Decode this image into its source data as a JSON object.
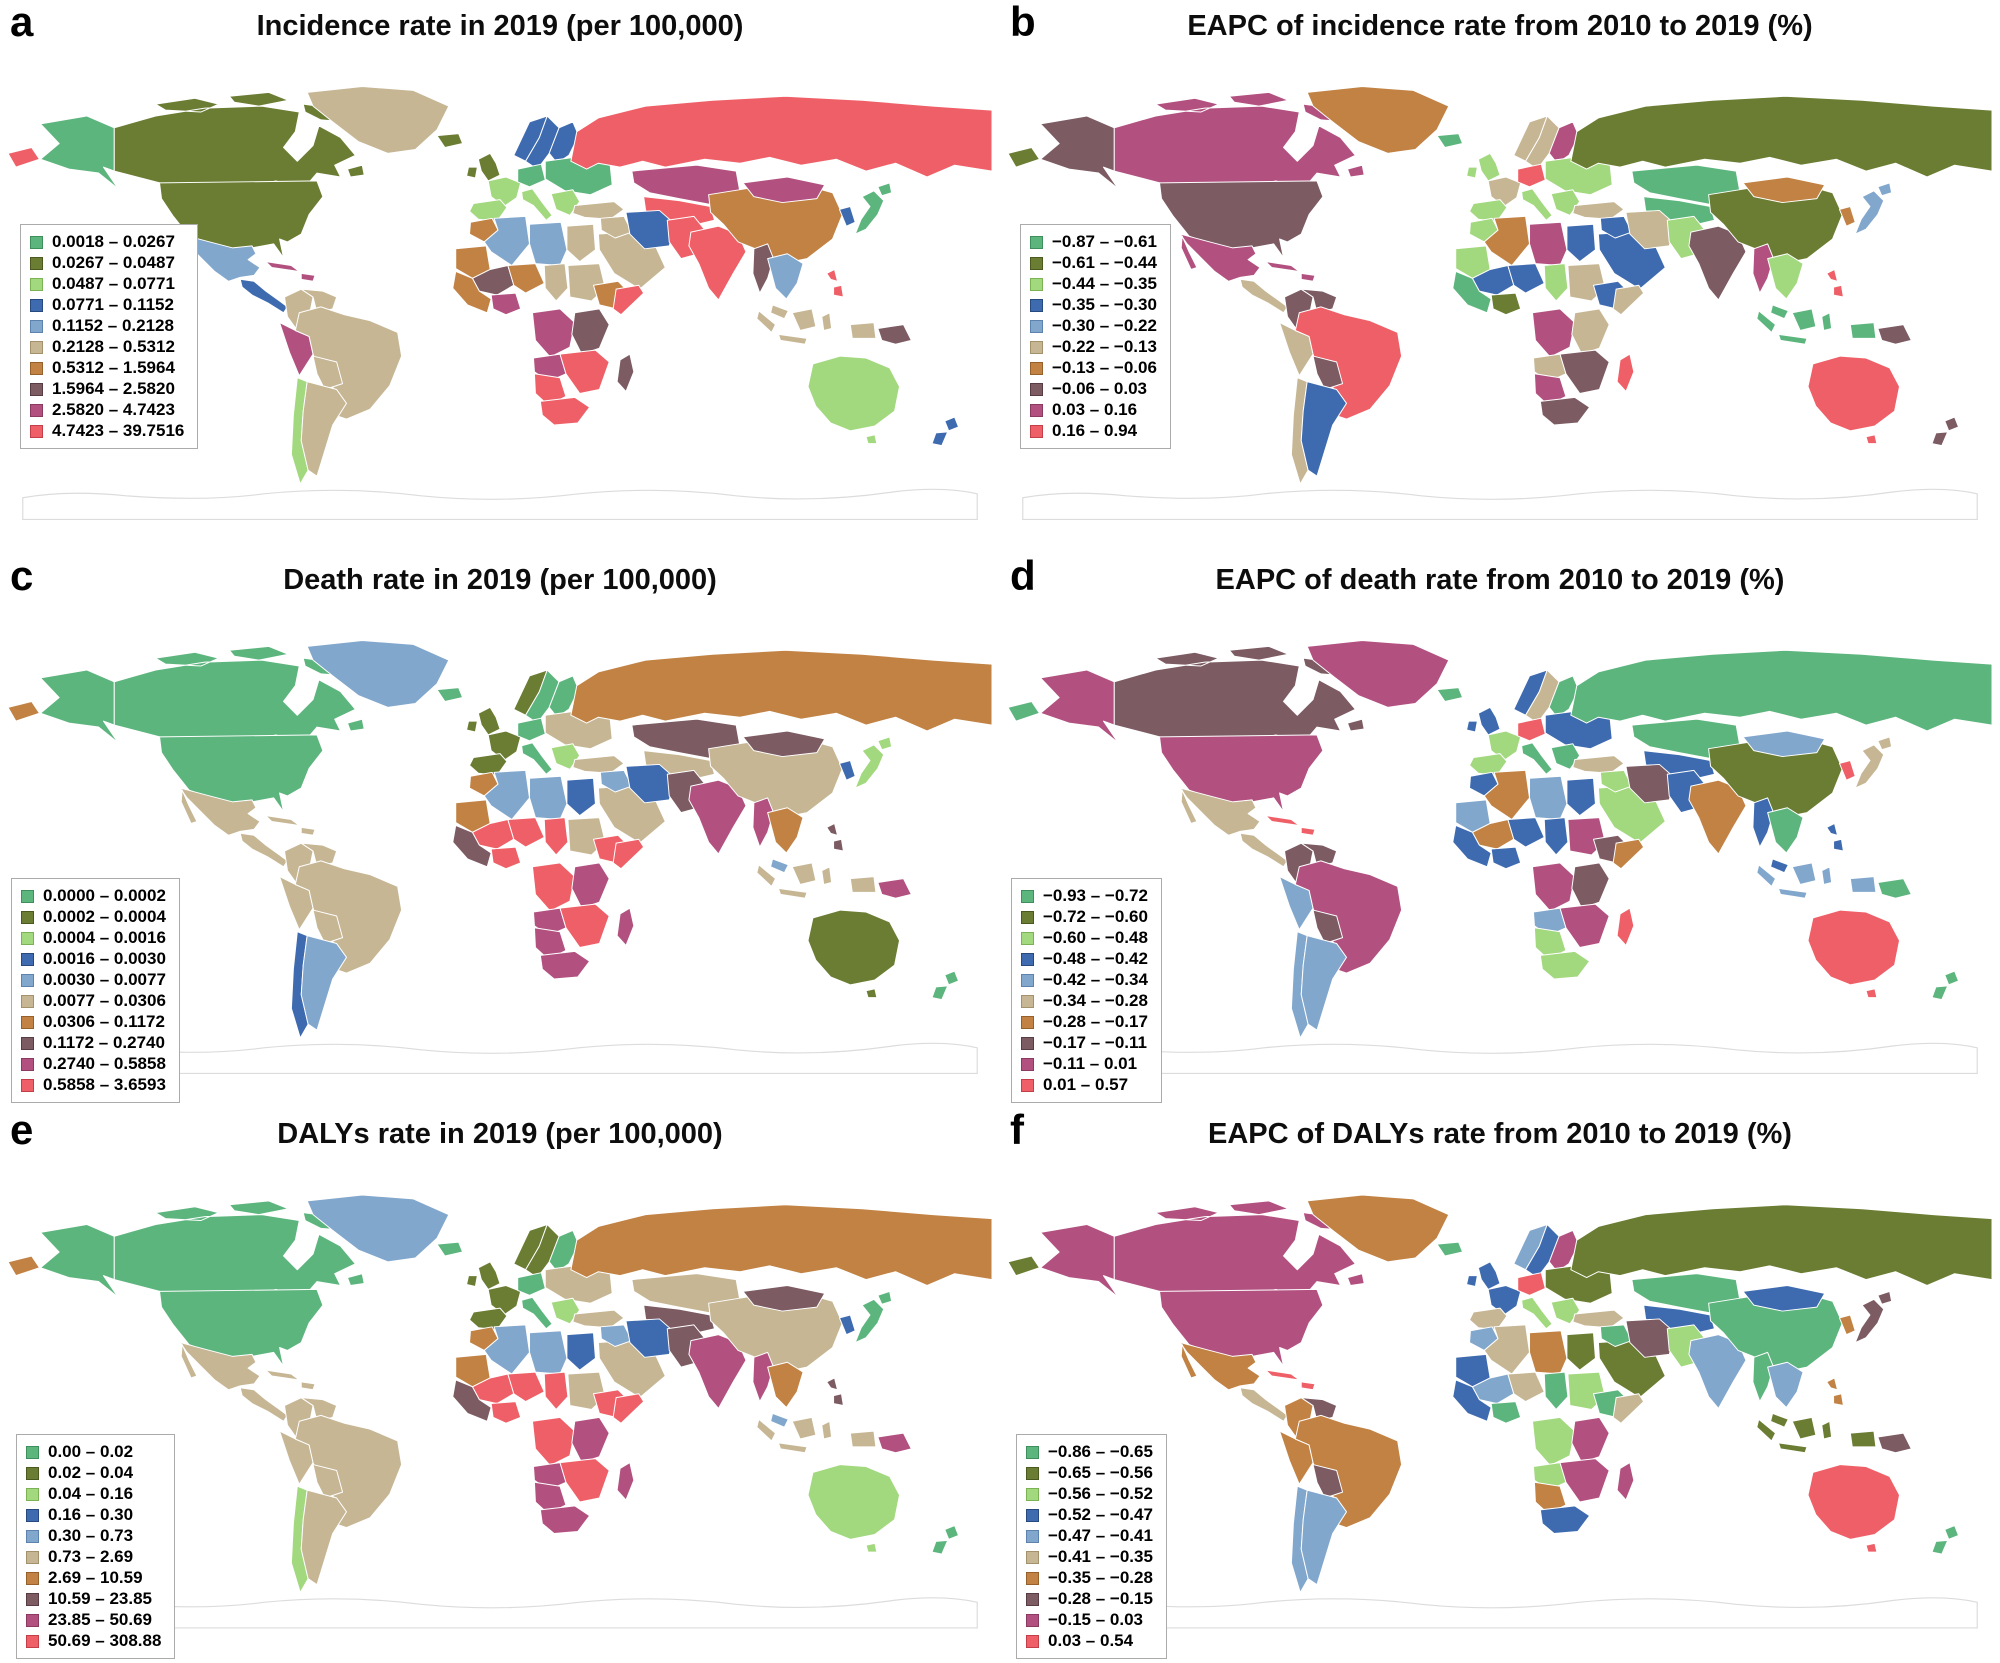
{
  "figure": {
    "palette": [
      "#5db57e",
      "#6b7d33",
      "#a2d87e",
      "#3e6bb0",
      "#82a7cd",
      "#c6b694",
      "#c18244",
      "#7c5b63",
      "#b25180",
      "#ef5f67"
    ],
    "palette_borders": [
      "#3f8f5c",
      "#4a591e",
      "#7bb254",
      "#27497e",
      "#5c82ad",
      "#a3916b",
      "#96602b",
      "#573c43",
      "#8a3a60",
      "#c23f49"
    ],
    "panels": [
      {
        "letter": "a",
        "title": "Incidence rate in 2019 (per 100,000)",
        "legend": [
          {
            "label": "0.0018 – 0.0267",
            "class": 1
          },
          {
            "label": "0.0267 – 0.0487",
            "class": 2
          },
          {
            "label": "0.0487 – 0.0771",
            "class": 3
          },
          {
            "label": "0.0771 – 0.1152",
            "class": 4
          },
          {
            "label": "0.1152 – 0.2128",
            "class": 5
          },
          {
            "label": "0.2128 – 0.5312",
            "class": 6
          },
          {
            "label": "0.5312 – 1.5964",
            "class": 7
          },
          {
            "label": "1.5964 – 2.5820",
            "class": 8
          },
          {
            "label": "2.5820 – 4.7423",
            "class": 9
          },
          {
            "label": "4.7423 – 39.7516",
            "class": 10
          }
        ],
        "regions": {
          "alaska": 1,
          "canada": 2,
          "usa": 2,
          "greenland": 6,
          "iceland": 2,
          "mexico": 5,
          "camerica": 4,
          "caribbean": 9,
          "colombia": 6,
          "venezuela": 6,
          "peru": 9,
          "brazil": 6,
          "bolivia": 6,
          "chile": 3,
          "argentina": 6,
          "uk": 2,
          "norway": 4,
          "sweden": 4,
          "finland": 4,
          "france": 3,
          "iberia": 3,
          "germany": 1,
          "italy": 3,
          "easteurope": 1,
          "balkans": 3,
          "turkey": 6,
          "russia": 10,
          "kazakhstan": 9,
          "centralasia": 10,
          "saudi": 6,
          "iraq": 6,
          "iran": 4,
          "afpak": 10,
          "india": 10,
          "china": 7,
          "mongolia": 9,
          "korea": 4,
          "japan": 1,
          "myanmar": 8,
          "indochina": 5,
          "malaysia": 6,
          "indonesia": 6,
          "philippines": 10,
          "png": 8,
          "australia": 3,
          "newzealand": 4,
          "morocco": 7,
          "algeria": 5,
          "libya": 5,
          "egypt": 6,
          "mauritania": 7,
          "mali": 8,
          "niger": 7,
          "chad": 6,
          "sudan": 6,
          "wafrica": 7,
          "nigeria": 9,
          "ethiopia": 7,
          "somalia": 10,
          "drc": 9,
          "eafrica": 8,
          "angola": 9,
          "zambezi": 10,
          "namibia": 10,
          "southafrica": 10,
          "madagascar": 8
        }
      },
      {
        "letter": "b",
        "title": "EAPC of incidence rate from 2010 to 2019 (%)",
        "legend": [
          {
            "label": "−0.87 – −0.61",
            "class": 1
          },
          {
            "label": "−0.61 – −0.44",
            "class": 2
          },
          {
            "label": "−0.44 – −0.35",
            "class": 3
          },
          {
            "label": "−0.35 – −0.30",
            "class": 4
          },
          {
            "label": "−0.30 – −0.22",
            "class": 5
          },
          {
            "label": "−0.22 – −0.13",
            "class": 6
          },
          {
            "label": "−0.13 – −0.06",
            "class": 7
          },
          {
            "label": "−0.06 – 0.03",
            "class": 8
          },
          {
            "label": "0.03 – 0.16",
            "class": 9
          },
          {
            "label": "0.16 – 0.94",
            "class": 10
          }
        ],
        "regions": {
          "alaska": 8,
          "canada": 9,
          "usa": 8,
          "greenland": 7,
          "iceland": 1,
          "mexico": 9,
          "camerica": 6,
          "caribbean": 9,
          "colombia": 8,
          "venezuela": 8,
          "peru": 6,
          "brazil": 10,
          "bolivia": 8,
          "chile": 6,
          "argentina": 4,
          "uk": 3,
          "norway": 6,
          "sweden": 6,
          "finland": 9,
          "france": 6,
          "iberia": 3,
          "germany": 10,
          "italy": 3,
          "easteurope": 3,
          "balkans": 3,
          "turkey": 6,
          "russia": 2,
          "kazakhstan": 1,
          "centralasia": 1,
          "saudi": 4,
          "iraq": 4,
          "iran": 6,
          "afpak": 3,
          "india": 8,
          "china": 2,
          "mongolia": 7,
          "korea": 7,
          "japan": 5,
          "myanmar": 9,
          "indochina": 3,
          "malaysia": 1,
          "indonesia": 1,
          "philippines": 10,
          "png": 8,
          "australia": 10,
          "newzealand": 8,
          "morocco": 3,
          "algeria": 7,
          "libya": 9,
          "egypt": 4,
          "mauritania": 3,
          "mali": 4,
          "niger": 4,
          "chad": 3,
          "sudan": 6,
          "wafrica": 1,
          "nigeria": 2,
          "ethiopia": 4,
          "somalia": 6,
          "drc": 9,
          "eafrica": 6,
          "angola": 6,
          "zambezi": 8,
          "namibia": 9,
          "southafrica": 8,
          "madagascar": 10
        }
      },
      {
        "letter": "c",
        "title": "Death rate in 2019 (per 100,000)",
        "legend": [
          {
            "label": "0.0000 – 0.0002",
            "class": 1
          },
          {
            "label": "0.0002 – 0.0004",
            "class": 2
          },
          {
            "label": "0.0004 – 0.0016",
            "class": 3
          },
          {
            "label": "0.0016 – 0.0030",
            "class": 4
          },
          {
            "label": "0.0030 – 0.0077",
            "class": 5
          },
          {
            "label": "0.0077 – 0.0306",
            "class": 6
          },
          {
            "label": "0.0306 – 0.1172",
            "class": 7
          },
          {
            "label": "0.1172 – 0.2740",
            "class": 8
          },
          {
            "label": "0.2740 – 0.5858",
            "class": 9
          },
          {
            "label": "0.5858 – 3.6593",
            "class": 10
          }
        ],
        "regions": {
          "alaska": 1,
          "canada": 1,
          "usa": 1,
          "greenland": 5,
          "iceland": 1,
          "mexico": 6,
          "camerica": 6,
          "caribbean": 6,
          "colombia": 6,
          "venezuela": 6,
          "peru": 6,
          "brazil": 6,
          "bolivia": 6,
          "chile": 4,
          "argentina": 5,
          "uk": 2,
          "norway": 2,
          "sweden": 1,
          "finland": 1,
          "france": 2,
          "iberia": 2,
          "germany": 1,
          "italy": 1,
          "easteurope": 6,
          "balkans": 3,
          "turkey": 6,
          "russia": 7,
          "kazakhstan": 8,
          "centralasia": 6,
          "saudi": 6,
          "iraq": 5,
          "iran": 4,
          "afpak": 8,
          "india": 9,
          "china": 6,
          "mongolia": 8,
          "korea": 4,
          "japan": 3,
          "myanmar": 9,
          "indochina": 7,
          "malaysia": 5,
          "indonesia": 6,
          "philippines": 8,
          "png": 9,
          "australia": 2,
          "newzealand": 1,
          "morocco": 7,
          "algeria": 5,
          "libya": 5,
          "egypt": 4,
          "mauritania": 7,
          "mali": 10,
          "niger": 10,
          "chad": 10,
          "sudan": 6,
          "wafrica": 8,
          "nigeria": 10,
          "ethiopia": 10,
          "somalia": 10,
          "drc": 10,
          "eafrica": 9,
          "angola": 9,
          "zambezi": 10,
          "namibia": 9,
          "southafrica": 9,
          "madagascar": 9
        }
      },
      {
        "letter": "d",
        "title": "EAPC of death rate from 2010 to 2019 (%)",
        "legend": [
          {
            "label": "−0.93 – −0.72",
            "class": 1
          },
          {
            "label": "−0.72 – −0.60",
            "class": 2
          },
          {
            "label": "−0.60 – −0.48",
            "class": 3
          },
          {
            "label": "−0.48 – −0.42",
            "class": 4
          },
          {
            "label": "−0.42 – −0.34",
            "class": 5
          },
          {
            "label": "−0.34 – −0.28",
            "class": 6
          },
          {
            "label": "−0.28 – −0.17",
            "class": 7
          },
          {
            "label": "−0.17 – −0.11",
            "class": 8
          },
          {
            "label": "−0.11 – 0.01",
            "class": 9
          },
          {
            "label": "0.01 – 0.57",
            "class": 10
          }
        ],
        "regions": {
          "alaska": 9,
          "canada": 8,
          "usa": 9,
          "greenland": 9,
          "iceland": 1,
          "mexico": 6,
          "camerica": 6,
          "caribbean": 10,
          "colombia": 8,
          "venezuela": 8,
          "peru": 5,
          "brazil": 9,
          "bolivia": 8,
          "chile": 5,
          "argentina": 5,
          "uk": 4,
          "norway": 4,
          "sweden": 6,
          "finland": 1,
          "france": 3,
          "iberia": 3,
          "germany": 10,
          "italy": 1,
          "easteurope": 4,
          "balkans": 1,
          "turkey": 6,
          "russia": 1,
          "kazakhstan": 1,
          "centralasia": 4,
          "saudi": 3,
          "iraq": 3,
          "iran": 8,
          "afpak": 4,
          "india": 7,
          "china": 2,
          "mongolia": 5,
          "korea": 10,
          "japan": 6,
          "myanmar": 4,
          "indochina": 1,
          "malaysia": 4,
          "indonesia": 5,
          "philippines": 4,
          "png": 1,
          "australia": 10,
          "newzealand": 1,
          "morocco": 4,
          "algeria": 7,
          "libya": 5,
          "egypt": 4,
          "mauritania": 5,
          "mali": 7,
          "niger": 4,
          "chad": 4,
          "sudan": 9,
          "wafrica": 4,
          "nigeria": 4,
          "ethiopia": 8,
          "somalia": 7,
          "drc": 9,
          "eafrica": 8,
          "angola": 5,
          "zambezi": 9,
          "namibia": 3,
          "southafrica": 3,
          "madagascar": 10
        }
      },
      {
        "letter": "e",
        "title": "DALYs rate in 2019 (per 100,000)",
        "legend": [
          {
            "label": "0.00 – 0.02",
            "class": 1
          },
          {
            "label": "0.02 – 0.04",
            "class": 2
          },
          {
            "label": "0.04 – 0.16",
            "class": 3
          },
          {
            "label": "0.16 – 0.30",
            "class": 4
          },
          {
            "label": "0.30 – 0.73",
            "class": 5
          },
          {
            "label": "0.73 – 2.69",
            "class": 6
          },
          {
            "label": "2.69 – 10.59",
            "class": 7
          },
          {
            "label": "10.59 – 23.85",
            "class": 8
          },
          {
            "label": "23.85 – 50.69",
            "class": 9
          },
          {
            "label": "50.69 – 308.88",
            "class": 10
          }
        ],
        "regions": {
          "alaska": 1,
          "canada": 1,
          "usa": 1,
          "greenland": 5,
          "iceland": 1,
          "mexico": 6,
          "camerica": 6,
          "caribbean": 6,
          "colombia": 6,
          "venezuela": 6,
          "peru": 6,
          "brazil": 6,
          "bolivia": 6,
          "chile": 3,
          "argentina": 6,
          "uk": 2,
          "norway": 2,
          "sweden": 2,
          "finland": 1,
          "france": 2,
          "iberia": 2,
          "germany": 1,
          "italy": 1,
          "easteurope": 6,
          "balkans": 3,
          "turkey": 6,
          "russia": 7,
          "kazakhstan": 6,
          "centralasia": 8,
          "saudi": 6,
          "iraq": 5,
          "iran": 4,
          "afpak": 8,
          "india": 9,
          "china": 6,
          "mongolia": 8,
          "korea": 4,
          "japan": 1,
          "myanmar": 9,
          "indochina": 7,
          "malaysia": 5,
          "indonesia": 6,
          "philippines": 8,
          "png": 9,
          "australia": 3,
          "newzealand": 1,
          "morocco": 7,
          "algeria": 5,
          "libya": 5,
          "egypt": 4,
          "mauritania": 7,
          "mali": 10,
          "niger": 10,
          "chad": 10,
          "sudan": 6,
          "wafrica": 8,
          "nigeria": 10,
          "ethiopia": 10,
          "somalia": 10,
          "drc": 10,
          "eafrica": 9,
          "angola": 9,
          "zambezi": 10,
          "namibia": 9,
          "southafrica": 9,
          "madagascar": 9
        }
      },
      {
        "letter": "f",
        "title": "EAPC of DALYs rate from 2010 to 2019 (%)",
        "legend": [
          {
            "label": "−0.86 – −0.65",
            "class": 1
          },
          {
            "label": "−0.65 – −0.56",
            "class": 2
          },
          {
            "label": "−0.56 – −0.52",
            "class": 3
          },
          {
            "label": "−0.52 – −0.47",
            "class": 4
          },
          {
            "label": "−0.47 – −0.41",
            "class": 5
          },
          {
            "label": "−0.41 – −0.35",
            "class": 6
          },
          {
            "label": "−0.35 – −0.28",
            "class": 7
          },
          {
            "label": "−0.28 – −0.15",
            "class": 8
          },
          {
            "label": "−0.15 – 0.03",
            "class": 9
          },
          {
            "label": "0.03 – 0.54",
            "class": 10
          }
        ],
        "regions": {
          "alaska": 9,
          "canada": 9,
          "usa": 9,
          "greenland": 7,
          "iceland": 1,
          "mexico": 7,
          "camerica": 6,
          "caribbean": 10,
          "colombia": 7,
          "venezuela": 8,
          "peru": 7,
          "brazil": 7,
          "bolivia": 8,
          "chile": 5,
          "argentina": 5,
          "uk": 4,
          "norway": 5,
          "sweden": 4,
          "finland": 9,
          "france": 4,
          "iberia": 6,
          "germany": 10,
          "italy": 3,
          "easteurope": 2,
          "balkans": 3,
          "turkey": 6,
          "russia": 2,
          "kazakhstan": 1,
          "centralasia": 4,
          "saudi": 2,
          "iraq": 1,
          "iran": 8,
          "afpak": 3,
          "india": 5,
          "china": 1,
          "mongolia": 4,
          "korea": 7,
          "japan": 8,
          "myanmar": 1,
          "indochina": 5,
          "malaysia": 2,
          "indonesia": 2,
          "philippines": 7,
          "png": 8,
          "australia": 10,
          "newzealand": 1,
          "morocco": 5,
          "algeria": 6,
          "libya": 7,
          "egypt": 2,
          "mauritania": 4,
          "mali": 5,
          "niger": 6,
          "chad": 1,
          "sudan": 3,
          "wafrica": 4,
          "nigeria": 1,
          "ethiopia": 1,
          "somalia": 6,
          "drc": 3,
          "eafrica": 9,
          "angola": 3,
          "zambezi": 9,
          "namibia": 7,
          "southafrica": 4,
          "madagascar": 9
        }
      }
    ]
  }
}
